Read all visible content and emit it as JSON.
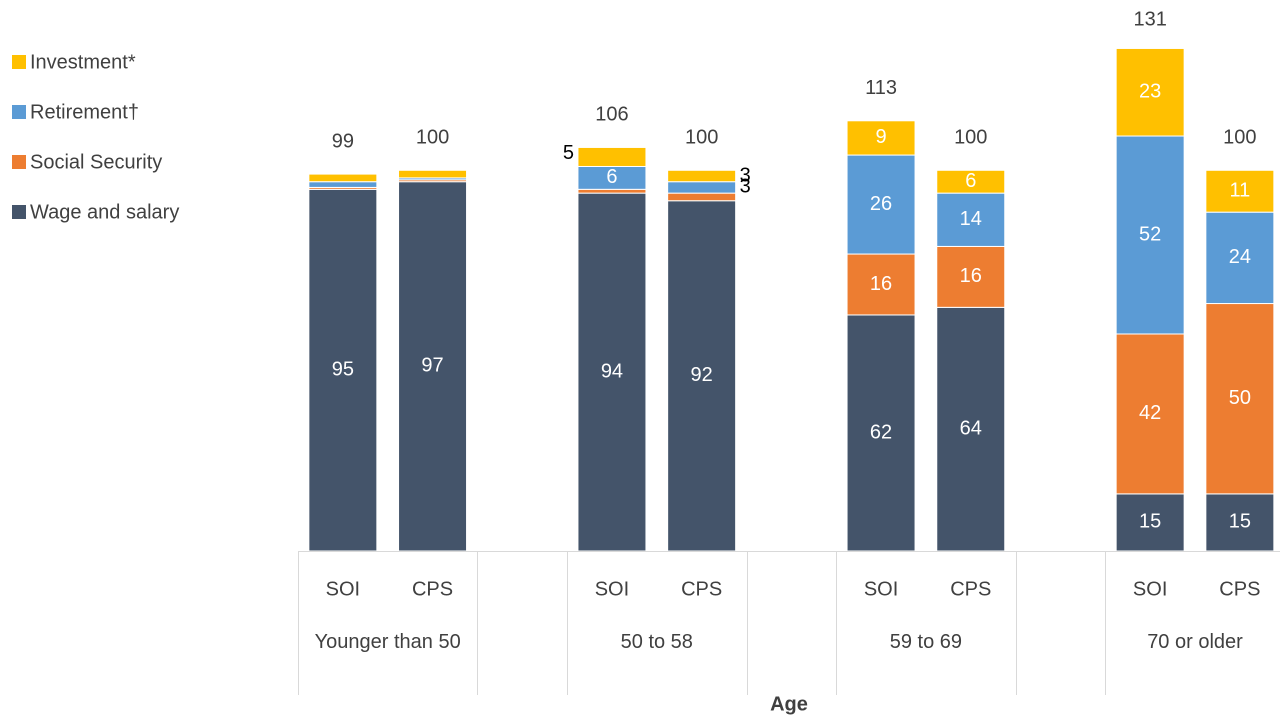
{
  "chart_data": {
    "type": "stacked_bar",
    "categories": [
      "SOI",
      "CPS",
      "SOI",
      "CPS",
      "SOI",
      "CPS",
      "SOI",
      "CPS"
    ],
    "groups": [
      "Younger than 50",
      "50 to 58",
      "59 to 69",
      "70 or older"
    ],
    "x_label": "Age",
    "series": [
      {
        "name": "Wage and salary",
        "color": "#44546a",
        "values": [
          95,
          97,
          94,
          92,
          62,
          64,
          15,
          15
        ]
      },
      {
        "name": "Social Security",
        "color": "#ed7d31",
        "values": [
          0.5,
          0.5,
          1,
          2,
          16,
          16,
          42,
          50
        ]
      },
      {
        "name": "Retirement†",
        "color": "#5b9bd5",
        "values": [
          1.5,
          0.5,
          6,
          3,
          26,
          14,
          52,
          24
        ]
      },
      {
        "name": "Investment*",
        "color": "#ffc000",
        "values": [
          2,
          2,
          5,
          3,
          9,
          6,
          23,
          11
        ]
      }
    ],
    "totals": [
      99,
      100,
      106,
      100,
      113,
      100,
      131,
      100
    ],
    "ylim": [
      0,
      140
    ],
    "legend": "top-left"
  }
}
